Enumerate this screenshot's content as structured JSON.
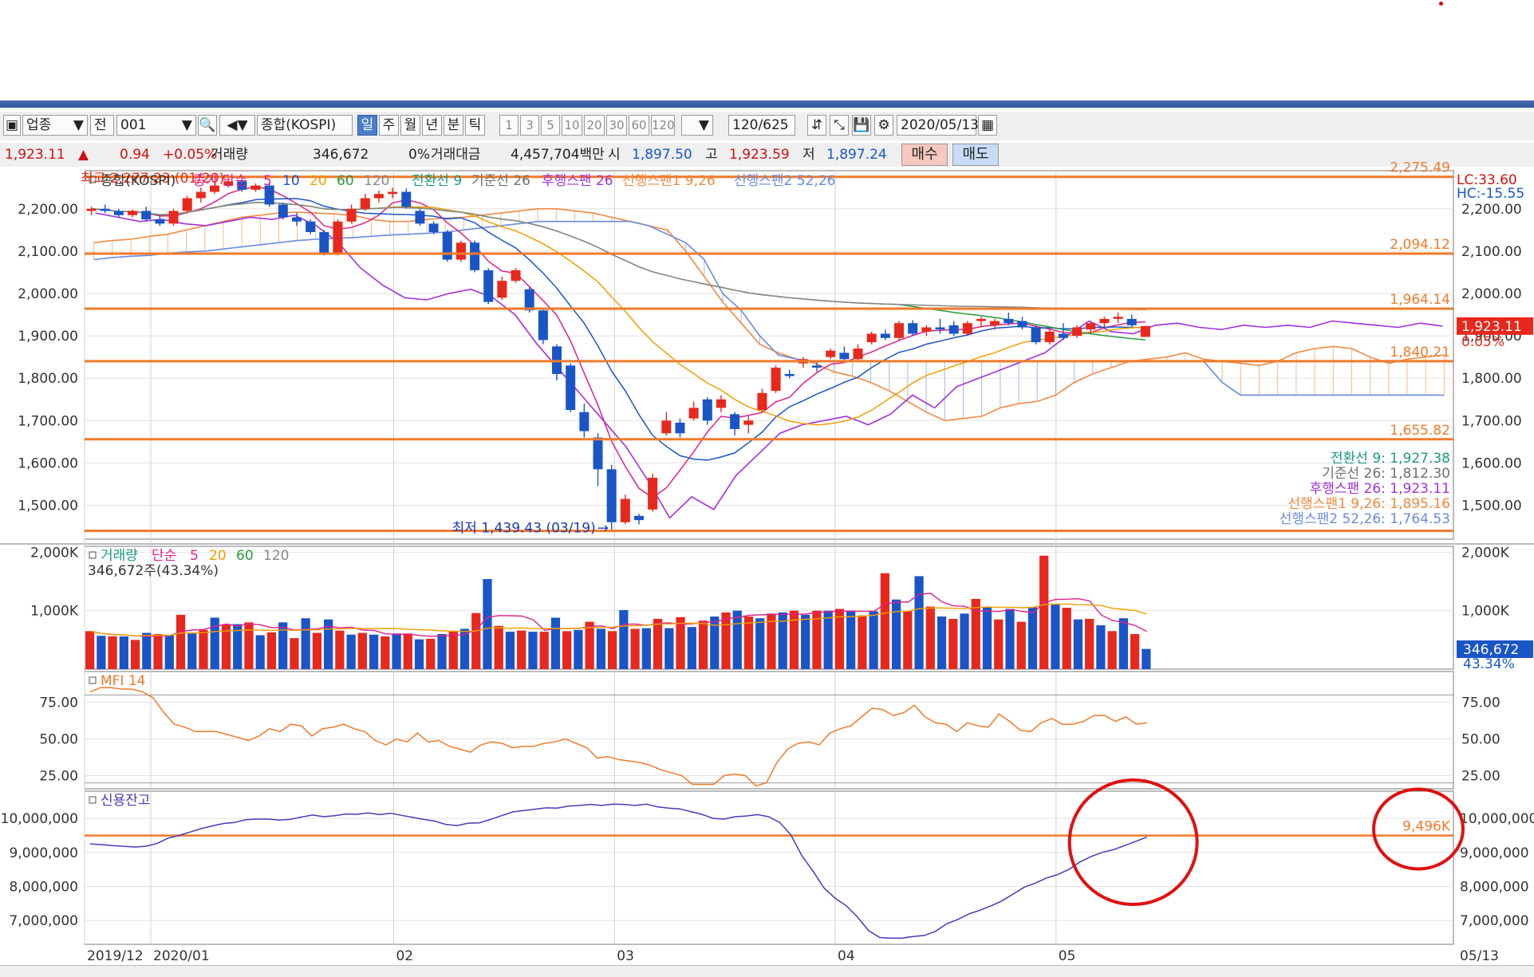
{
  "toolbar": {
    "market_type": "업종",
    "jeon": "전",
    "code": "001",
    "name": "종합(KOSPI)",
    "periods": [
      "일",
      "주",
      "월",
      "년",
      "분",
      "틱"
    ],
    "selected_period": "일",
    "intervals": [
      "1",
      "3",
      "5",
      "10",
      "20",
      "30",
      "60",
      "120"
    ],
    "count": "120/625",
    "date": "2020/05/13"
  },
  "quote": {
    "price": "1,923.11",
    "change_arrow": "▲",
    "change": "0.94",
    "change_pct": "+0.05%",
    "volume_label": "거래량",
    "volume": "346,672",
    "volume_pct": "0%",
    "amount_label": "거래대금",
    "amount": "4,457,704백만",
    "open_label": "시",
    "open": "1,897.50",
    "high_label": "고",
    "high": "1,923.59",
    "low_label": "저",
    "low": "1,897.24",
    "buy_label": "매수",
    "sell_label": "매도"
  },
  "colors": {
    "up": "#e8281c",
    "down": "#1a55c8",
    "hline": "#f07a2a",
    "ma5": "#e0208c",
    "ma10": "#1a55c8",
    "ma20": "#f0a000",
    "ma60": "#2a9a3a",
    "ma120": "#888888",
    "conv": "#1a9a80",
    "base": "#707070",
    "lag": "#a030e0",
    "span1": "#f08a40",
    "span2": "#6a8ae0",
    "mfi": "#f07a2a",
    "credit": "#4a3ab8",
    "circle": "#e01010"
  },
  "chart_data": [
    {
      "type": "candlestick",
      "panel": "price",
      "legend": {
        "name": "종합(KOSPI)",
        "ma_label": "종가 단순",
        "ma_periods": [
          "5",
          "10",
          "20",
          "60",
          "120"
        ],
        "ichimoku": [
          "전환선 9",
          "기준선 26",
          "후행스팬 26",
          "선행스팬1 9,26",
          "선행스팬2 52,26"
        ]
      },
      "y_ticks": [
        "2,200.00",
        "2,100.00",
        "2,000.00",
        "1,900.00",
        "1,800.00",
        "1,700.00",
        "1,600.00",
        "1,500.00"
      ],
      "y_tick_values": [
        2200,
        2100,
        2000,
        1900,
        1800,
        1700,
        1600,
        1500
      ],
      "ylim": [
        1420,
        2290
      ],
      "x_labels": [
        "2019/12",
        "2020/01",
        "02",
        "03",
        "04",
        "05"
      ],
      "x_label_index": [
        0,
        3,
        14,
        24,
        34,
        44
      ],
      "last_date": "05/13",
      "n_slots": 62,
      "ohlc": [
        [
          2195,
          2205,
          2185,
          2200
        ],
        [
          2200,
          2210,
          2190,
          2195
        ],
        [
          2195,
          2200,
          2180,
          2185
        ],
        [
          2185,
          2198,
          2180,
          2195
        ],
        [
          2195,
          2205,
          2170,
          2175
        ],
        [
          2175,
          2185,
          2160,
          2165
        ],
        [
          2165,
          2200,
          2160,
          2195
        ],
        [
          2195,
          2230,
          2190,
          2225
        ],
        [
          2225,
          2250,
          2215,
          2240
        ],
        [
          2240,
          2265,
          2235,
          2255
        ],
        [
          2255,
          2278,
          2250,
          2265
        ],
        [
          2265,
          2277,
          2240,
          2245
        ],
        [
          2245,
          2260,
          2240,
          2255
        ],
        [
          2255,
          2260,
          2205,
          2210
        ],
        [
          2210,
          2215,
          2175,
          2180
        ],
        [
          2180,
          2190,
          2160,
          2170
        ],
        [
          2170,
          2175,
          2140,
          2145
        ],
        [
          2145,
          2150,
          2090,
          2095
        ],
        [
          2095,
          2175,
          2090,
          2170
        ],
        [
          2170,
          2210,
          2165,
          2200
        ],
        [
          2200,
          2235,
          2195,
          2225
        ],
        [
          2225,
          2243,
          2215,
          2235
        ],
        [
          2235,
          2250,
          2225,
          2240
        ],
        [
          2240,
          2248,
          2200,
          2205
        ],
        [
          2195,
          2200,
          2160,
          2165
        ],
        [
          2165,
          2170,
          2140,
          2145
        ],
        [
          2145,
          2150,
          2075,
          2080
        ],
        [
          2080,
          2125,
          2075,
          2120
        ],
        [
          2120,
          2125,
          2050,
          2055
        ],
        [
          2055,
          2060,
          1975,
          1980
        ],
        [
          1990,
          2040,
          1985,
          2030
        ],
        [
          2030,
          2060,
          2025,
          2055
        ],
        [
          2010,
          2015,
          1955,
          1960
        ],
        [
          1960,
          1965,
          1880,
          1890
        ],
        [
          1875,
          1880,
          1795,
          1810
        ],
        [
          1830,
          1835,
          1720,
          1725
        ],
        [
          1720,
          1740,
          1660,
          1675
        ],
        [
          1660,
          1670,
          1545,
          1585
        ],
        [
          1585,
          1595,
          1439,
          1460
        ],
        [
          1460,
          1525,
          1455,
          1515
        ],
        [
          1475,
          1480,
          1455,
          1465
        ],
        [
          1490,
          1575,
          1485,
          1565
        ],
        [
          1670,
          1720,
          1665,
          1700
        ],
        [
          1695,
          1705,
          1660,
          1670
        ],
        [
          1705,
          1745,
          1700,
          1730
        ],
        [
          1750,
          1755,
          1690,
          1700
        ],
        [
          1730,
          1760,
          1720,
          1750
        ],
        [
          1715,
          1720,
          1665,
          1680
        ],
        [
          1690,
          1710,
          1670,
          1700
        ],
        [
          1725,
          1775,
          1720,
          1765
        ],
        [
          1770,
          1830,
          1765,
          1825
        ],
        [
          1810,
          1820,
          1800,
          1805
        ],
        [
          1835,
          1850,
          1825,
          1845
        ],
        [
          1830,
          1840,
          1815,
          1825
        ],
        [
          1850,
          1870,
          1845,
          1865
        ],
        [
          1860,
          1875,
          1840,
          1845
        ],
        [
          1845,
          1880,
          1840,
          1870
        ],
        [
          1885,
          1910,
          1880,
          1905
        ],
        [
          1905,
          1915,
          1890,
          1895
        ],
        [
          1895,
          1935,
          1890,
          1930
        ],
        [
          1930,
          1937,
          1900,
          1905
        ],
        [
          1910,
          1925,
          1900,
          1920
        ],
        [
          1920,
          1940,
          1905,
          1915
        ],
        [
          1925,
          1935,
          1900,
          1905
        ],
        [
          1905,
          1935,
          1900,
          1930
        ],
        [
          1935,
          1945,
          1920,
          1940
        ],
        [
          1925,
          1940,
          1915,
          1935
        ],
        [
          1940,
          1955,
          1925,
          1930
        ],
        [
          1935,
          1945,
          1915,
          1920
        ],
        [
          1920,
          1925,
          1880,
          1885
        ],
        [
          1885,
          1915,
          1880,
          1910
        ],
        [
          1905,
          1930,
          1890,
          1895
        ],
        [
          1900,
          1925,
          1895,
          1920
        ],
        [
          1915,
          1935,
          1905,
          1930
        ],
        [
          1930,
          1945,
          1920,
          1940
        ],
        [
          1940,
          1955,
          1930,
          1945
        ],
        [
          1940,
          1950,
          1920,
          1925
        ],
        [
          1897.5,
          1923.59,
          1897.24,
          1923.11
        ]
      ],
      "h_lines": [
        {
          "value": 2275.49,
          "label": "2,275.49"
        },
        {
          "value": 2094.12,
          "label": "2,094.12"
        },
        {
          "value": 1964.14,
          "label": "1,964.14"
        },
        {
          "value": 1840.21,
          "label": "1,840.21"
        },
        {
          "value": 1655.82,
          "label": "1,655.82"
        },
        {
          "value": 1439.43,
          "label": ""
        }
      ],
      "annotations": {
        "high": "최고 2,277.23 (01/20)",
        "low": "최저 1,439.43 (03/19)"
      },
      "right_top": {
        "lc": "LC:33.60",
        "hc": "HC:-15.55"
      },
      "current": {
        "price": "1,923.11",
        "pct": "0.05%"
      },
      "ichimoku_values": [
        {
          "label": "전환선 9: 1,927.38",
          "color": "#1a9a80"
        },
        {
          "label": "기준선 26: 1,812.30",
          "color": "#707070"
        },
        {
          "label": "후행스팬 26: 1,923.11",
          "color": "#a030e0"
        },
        {
          "label": "선행스팬1 9,26: 1,895.16",
          "color": "#f08a40"
        },
        {
          "label": "선행스팬2 52,26: 1,764.53",
          "color": "#6a8ae0"
        }
      ],
      "lagging_span": [
        2190,
        2180,
        2170,
        2175,
        2165,
        2160,
        2170,
        2180,
        2175,
        2185,
        2160,
        2120,
        2060,
        2020,
        1990,
        1985,
        2000,
        2010,
        1990,
        1950,
        1880,
        1820,
        1760,
        1700,
        1640,
        1560,
        1470,
        1520,
        1490,
        1570,
        1620,
        1670,
        1690,
        1700,
        1710,
        1690,
        1715,
        1760,
        1730,
        1780,
        1800,
        1820,
        1840,
        1860,
        1900,
        1935,
        1910,
        1905,
        1925,
        1930,
        1920,
        1915,
        1925,
        1920,
        1925,
        1920,
        1935,
        1930,
        1925,
        1920,
        1930,
        1923
      ],
      "span_a": [
        2120,
        2125,
        2128,
        2135,
        2140,
        2150,
        2160,
        2170,
        2180,
        2185,
        2190,
        2192,
        2190,
        2188,
        2185,
        2175,
        2170,
        2170,
        2175,
        2178,
        2180,
        2185,
        2190,
        2195,
        2200,
        2200,
        2195,
        2190,
        2180,
        2170,
        2160,
        2150,
        2100,
        2040,
        1980,
        1930,
        1880,
        1860,
        1845,
        1835,
        1815,
        1805,
        1790,
        1770,
        1745,
        1720,
        1700,
        1705,
        1710,
        1730,
        1740,
        1745,
        1760,
        1790,
        1810,
        1825,
        1840,
        1845,
        1850,
        1860,
        1845,
        1840,
        1835,
        1830,
        1840,
        1860,
        1870,
        1875,
        1870,
        1850,
        1835,
        1845,
        1850,
        1855
      ],
      "span_b": [
        2080,
        2085,
        2088,
        2090,
        2095,
        2098,
        2100,
        2105,
        2110,
        2115,
        2120,
        2125,
        2128,
        2130,
        2132,
        2135,
        2138,
        2140,
        2142,
        2145,
        2150,
        2155,
        2160,
        2165,
        2170,
        2170,
        2170,
        2170,
        2170,
        2170,
        2160,
        2140,
        2120,
        2080,
        2000,
        1960,
        1900,
        1855,
        1845,
        1840,
        1840,
        1840,
        1840,
        1840,
        1840,
        1840,
        1840,
        1840,
        1840,
        1840,
        1840,
        1840,
        1840,
        1840,
        1840,
        1840,
        1840,
        1840,
        1840,
        1840,
        1840,
        1790,
        1760,
        1760,
        1760,
        1760,
        1760,
        1760,
        1760,
        1760,
        1760,
        1760,
        1760,
        1760
      ]
    },
    {
      "type": "bar",
      "panel": "volume",
      "legend": {
        "name": "거래량",
        "ma_label": "단순",
        "ma_periods": [
          "5",
          "20",
          "60",
          "120"
        ]
      },
      "info": "346,672주(43.34%)",
      "y_ticks": [
        "2,000K",
        "1,000K"
      ],
      "y_tick_values": [
        2000,
        1000
      ],
      "ylim": [
        0,
        2100
      ],
      "current": {
        "value": "346,672",
        "pct": "43.34%"
      },
      "values_k": [
        650,
        570,
        560,
        560,
        500,
        620,
        600,
        580,
        930,
        610,
        670,
        880,
        760,
        770,
        800,
        580,
        630,
        800,
        530,
        870,
        620,
        850,
        660,
        590,
        620,
        590,
        560,
        610,
        610,
        510,
        520,
        600,
        650,
        690,
        960,
        1540,
        740,
        640,
        660,
        640,
        640,
        880,
        650,
        670,
        810,
        690,
        650,
        1010,
        690,
        700,
        860,
        700,
        890,
        720,
        830,
        900,
        970,
        1000,
        900,
        870,
        950,
        970,
        1000,
        930,
        1000,
        1000,
        1030,
        1000,
        920,
        990,
        1640,
        1190,
        990,
        1590,
        1070,
        900,
        860,
        950,
        1200,
        1060,
        850,
        1030,
        810,
        1060,
        1940,
        1120,
        1050,
        850,
        860,
        750,
        650,
        870,
        600,
        346
      ]
    },
    {
      "type": "line",
      "panel": "mfi",
      "legend": {
        "name": "MFI 14"
      },
      "y_ticks": [
        "75.00",
        "50.00",
        "25.00"
      ],
      "y_tick_values": [
        75,
        50,
        25
      ],
      "ylim": [
        16,
        96
      ],
      "values": [
        82,
        85,
        85,
        84,
        84,
        82,
        78,
        68,
        60,
        58,
        55,
        55,
        55,
        53,
        51,
        49,
        52,
        57,
        55,
        60,
        59,
        52,
        57,
        58,
        60,
        57,
        55,
        49,
        46,
        50,
        48,
        54,
        48,
        49,
        45,
        43,
        41,
        46,
        48,
        47,
        44,
        45,
        45,
        47,
        48,
        50,
        47,
        44,
        37,
        38,
        36,
        35,
        34,
        32,
        29,
        27,
        25,
        19,
        19,
        19,
        25,
        26,
        25,
        18,
        20,
        34,
        43,
        47,
        48,
        46,
        54,
        57,
        59,
        65,
        71,
        70,
        66,
        68,
        73,
        65,
        61,
        60,
        55,
        61,
        59,
        58,
        67,
        62,
        56,
        55,
        61,
        64,
        60,
        60,
        62,
        66,
        66,
        62,
        65,
        60,
        61
      ],
      "start_slot": 0
    },
    {
      "type": "line",
      "panel": "credit",
      "legend": {
        "name": "신용잔고"
      },
      "y_ticks": [
        "10,000,000",
        "9,000,000",
        "8,000,000",
        "7,000,000"
      ],
      "y_tick_values": [
        10000000,
        9000000,
        8000000,
        7000000
      ],
      "ylim": [
        6300000,
        10800000
      ],
      "h_line": {
        "value": 9496000,
        "label": "9,496K"
      },
      "values": [
        9250000,
        9230000,
        9200000,
        9180000,
        9160000,
        9180000,
        9260000,
        9420000,
        9500000,
        9600000,
        9700000,
        9780000,
        9850000,
        9880000,
        9960000,
        9980000,
        9980000,
        9950000,
        9970000,
        10040000,
        10100000,
        10050000,
        10080000,
        10130000,
        10120000,
        10160000,
        10110000,
        10150000,
        10090000,
        10030000,
        9970000,
        9920000,
        9820000,
        9790000,
        9860000,
        9870000,
        9970000,
        10080000,
        10190000,
        10230000,
        10270000,
        10310000,
        10300000,
        10360000,
        10380000,
        10410000,
        10380000,
        10420000,
        10410000,
        10380000,
        10420000,
        10340000,
        10300000,
        10280000,
        10200000,
        10120000,
        10000000,
        9980000,
        10050000,
        10070000,
        10110000,
        10050000,
        9880000,
        9520000,
        8900000,
        8450000,
        7950000,
        7650000,
        7430000,
        7100000,
        6700000,
        6500000,
        6480000,
        6480000,
        6530000,
        6560000,
        6680000,
        6900000,
        7030000,
        7190000,
        7300000,
        7430000,
        7580000,
        7780000,
        7980000,
        8100000,
        8250000,
        8350000,
        8500000,
        8720000,
        8880000,
        9000000,
        9080000,
        9200000,
        9320000,
        9450000
      ]
    }
  ],
  "footer": {
    "right_date": "05/13"
  }
}
